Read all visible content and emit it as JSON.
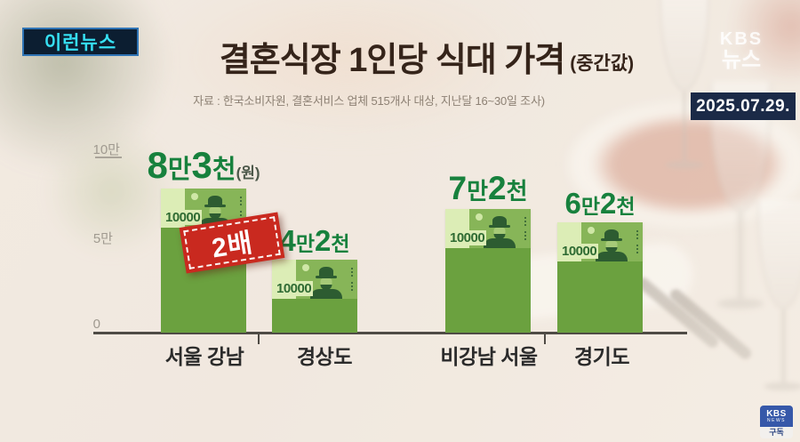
{
  "program_badge": {
    "label": "이런뉴스"
  },
  "header": {
    "title": "결혼식장 1인당 식대 가격",
    "title_note": "(중간값)",
    "source": "자료 : 한국소비자원, 결혼서비스 업체 515개사 대상, 지난달 16~30일 조사)"
  },
  "broadcaster": {
    "logo_top": "KBS",
    "logo_bottom": "뉴스",
    "date": "2025.07.29.",
    "subscribe_badge": {
      "brand": "KBS",
      "brand_sub": "NEWS",
      "label": "구독"
    }
  },
  "chart_data": {
    "type": "bar",
    "title": "결혼식장 1인당 식대 가격 (중간값)",
    "unit": "원",
    "categories": [
      "서울 강남",
      "경상도",
      "비강남 서울",
      "경기도"
    ],
    "values": [
      83000,
      42000,
      72000,
      62000
    ],
    "ylim": [
      0,
      100000
    ],
    "grid": "off",
    "y_axis": {
      "ticks": [
        {
          "label": "10만",
          "value": 100000
        },
        {
          "label": "5만",
          "value": 50000
        },
        {
          "label": "0",
          "value": 0
        }
      ]
    },
    "annotation": {
      "label": "2배"
    },
    "bars": [
      {
        "category": "서울 강남",
        "value": 83000,
        "banknote_text": "10000",
        "display": {
          "d1": "8",
          "u1": "만",
          "d2": "3",
          "u2": "천",
          "suffix": "(원)"
        }
      },
      {
        "category": "경상도",
        "value": 42000,
        "banknote_text": "10000",
        "display": {
          "d1": "4",
          "u1": "만",
          "d2": "2",
          "u2": "천",
          "suffix": ""
        }
      },
      {
        "category": "비강남 서울",
        "value": 72000,
        "banknote_text": "10000",
        "display": {
          "d1": "7",
          "u1": "만",
          "d2": "2",
          "u2": "천",
          "suffix": ""
        }
      },
      {
        "category": "경기도",
        "value": 62000,
        "banknote_text": "10000",
        "display": {
          "d1": "6",
          "u1": "만",
          "d2": "2",
          "u2": "천",
          "suffix": ""
        }
      }
    ],
    "colors": {
      "value_text": "#17813d",
      "bar_body": "#6ba13f",
      "banknote_light": "#dcedb6",
      "banknote_panel": "#87b558",
      "stamp_red": "#c9291f"
    }
  }
}
